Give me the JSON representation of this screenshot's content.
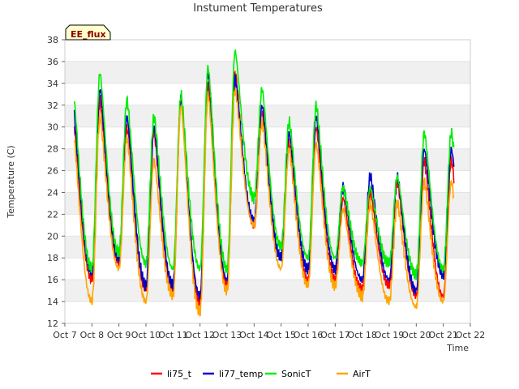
{
  "chart_data": {
    "type": "line",
    "title": "Instument Temperatures",
    "xlabel": "Time",
    "ylabel": "Temperature (C)",
    "badge": "EE_flux",
    "ylim": [
      12,
      38
    ],
    "yticks": [
      12,
      14,
      16,
      18,
      20,
      22,
      24,
      26,
      28,
      30,
      32,
      34,
      36,
      38
    ],
    "xlim": [
      0,
      15
    ],
    "xticks": [
      "Oct 7",
      "Oct 8",
      "Oct 9",
      "Oct 10",
      "Oct 11",
      "Oct 12",
      "Oct 13",
      "Oct 14",
      "Oct 15",
      "Oct 16",
      "Oct 17",
      "Oct 18",
      "Oct 19",
      "Oct 20",
      "Oct 21",
      "Oct 22"
    ],
    "grid": "horizontal bands",
    "legend": "bottom",
    "daily": {
      "days": [
        7,
        8,
        9,
        10,
        11,
        12,
        13,
        14,
        15,
        16,
        17,
        18,
        19,
        20,
        21
      ],
      "series": [
        {
          "name": "li75_t",
          "color": "#ff0000",
          "max": [
            31.0,
            32.5,
            30.0,
            29.5,
            32.5,
            34.0,
            35.0,
            31.0,
            28.5,
            30.0,
            23.5,
            24.0,
            25.0,
            27.0
          ],
          "min": [
            15.0,
            16.0,
            17.5,
            15.0,
            15.0,
            14.0,
            15.5,
            21.0,
            18.0,
            16.0,
            16.0,
            15.0,
            15.5,
            14.5,
            14.5
          ]
        },
        {
          "name": "li77_temp",
          "color": "#0000cc",
          "max": [
            32.0,
            33.5,
            31.0,
            30.0,
            32.5,
            35.0,
            34.5,
            32.0,
            29.5,
            31.0,
            24.5,
            25.5,
            25.5,
            28.0
          ],
          "min": [
            16.0,
            16.5,
            18.0,
            15.5,
            15.5,
            14.5,
            16.0,
            21.5,
            18.0,
            17.0,
            17.0,
            16.0,
            16.0,
            15.0,
            16.5
          ]
        },
        {
          "name": "SonicT",
          "color": "#00ee00",
          "max": [
            33.5,
            35.0,
            32.5,
            31.0,
            33.0,
            35.5,
            37.0,
            33.5,
            30.5,
            32.0,
            24.5,
            24.5,
            25.5,
            29.5
          ],
          "min": [
            17.0,
            17.0,
            18.5,
            17.5,
            17.0,
            17.0,
            17.0,
            23.5,
            19.0,
            18.0,
            18.0,
            17.5,
            17.5,
            16.5,
            17.0
          ]
        },
        {
          "name": "AirT",
          "color": "#ffa500",
          "max": [
            30.0,
            31.0,
            29.0,
            27.0,
            32.0,
            33.0,
            33.5,
            30.5,
            28.0,
            28.5,
            22.5,
            23.0,
            23.0,
            25.0
          ],
          "min": [
            14.0,
            14.0,
            17.0,
            14.0,
            14.5,
            13.0,
            15.0,
            21.0,
            17.0,
            15.5,
            15.5,
            14.5,
            14.0,
            13.5,
            14.0
          ]
        }
      ]
    }
  }
}
